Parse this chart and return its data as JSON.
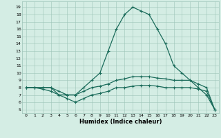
{
  "xlabel": "Humidex (Indice chaleur)",
  "bg_color": "#d4ede4",
  "grid_color": "#9dc4b8",
  "line_color": "#1a6b5a",
  "xlim": [
    -0.5,
    23.5
  ],
  "ylim": [
    4.5,
    19.8
  ],
  "xticks": [
    0,
    1,
    2,
    3,
    4,
    5,
    6,
    7,
    8,
    9,
    10,
    11,
    12,
    13,
    14,
    15,
    16,
    17,
    18,
    19,
    20,
    21,
    22,
    23
  ],
  "yticks": [
    5,
    6,
    7,
    8,
    9,
    10,
    11,
    12,
    13,
    14,
    15,
    16,
    17,
    18,
    19
  ],
  "series1_x": [
    0,
    1,
    2,
    3,
    4,
    5,
    6,
    7,
    8,
    9,
    10,
    11,
    12,
    13,
    14,
    15,
    16,
    17,
    18,
    19,
    20,
    21,
    22,
    23
  ],
  "series1_y": [
    8,
    8,
    8,
    8,
    7,
    7,
    7,
    8,
    9,
    10,
    13,
    16,
    18,
    19,
    18.5,
    18,
    16,
    14,
    11,
    10,
    9,
    8,
    7,
    5
  ],
  "series2_x": [
    0,
    1,
    2,
    3,
    4,
    5,
    6,
    7,
    8,
    9,
    10,
    11,
    12,
    13,
    14,
    15,
    16,
    17,
    18,
    19,
    20,
    21,
    22,
    23
  ],
  "series2_y": [
    8,
    8,
    8,
    8,
    7.5,
    7,
    7,
    7.5,
    8,
    8.2,
    8.5,
    9,
    9.2,
    9.5,
    9.5,
    9.5,
    9.3,
    9.2,
    9,
    9,
    9,
    8.5,
    8,
    5
  ],
  "series3_x": [
    0,
    1,
    2,
    3,
    4,
    5,
    6,
    7,
    8,
    9,
    10,
    11,
    12,
    13,
    14,
    15,
    16,
    17,
    18,
    19,
    20,
    21,
    22,
    23
  ],
  "series3_y": [
    8,
    8,
    7.8,
    7.5,
    7,
    6.5,
    6,
    6.5,
    7,
    7.2,
    7.5,
    8,
    8,
    8.2,
    8.3,
    8.3,
    8.2,
    8,
    8,
    8,
    8,
    7.8,
    7.5,
    5
  ]
}
